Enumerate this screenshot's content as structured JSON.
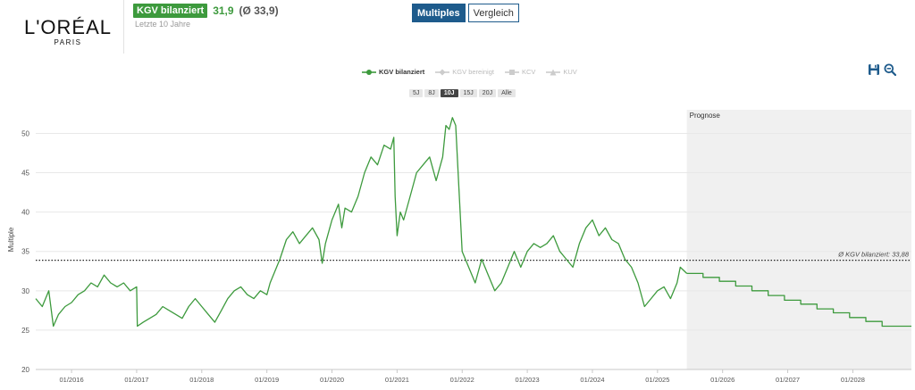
{
  "company": {
    "logo_main": "L'ORÉAL",
    "logo_sub": "PARIS"
  },
  "kpi": {
    "label": "KGV bilanziert",
    "value": "31,9",
    "average": "(Ø 33,9)",
    "subtitle": "Letzte 10 Jahre"
  },
  "tabs": [
    {
      "label": "Multiples",
      "active": true
    },
    {
      "label": "Vergleich",
      "active": false
    }
  ],
  "legend": [
    {
      "label": "KGV bilanziert",
      "active": true,
      "symbol": "circle"
    },
    {
      "label": "KGV bereinigt",
      "active": false,
      "symbol": "diamond"
    },
    {
      "label": "KCV",
      "active": false,
      "symbol": "square"
    },
    {
      "label": "KUV",
      "active": false,
      "symbol": "triangle"
    }
  ],
  "ranges": [
    {
      "label": "5J",
      "active": false
    },
    {
      "label": "8J",
      "active": false
    },
    {
      "label": "10J",
      "active": true
    },
    {
      "label": "15J",
      "active": false
    },
    {
      "label": "20J",
      "active": false
    },
    {
      "label": "Alle",
      "active": false
    }
  ],
  "tools": {
    "save_icon": "save-icon",
    "zoom_icon": "zoom-out-icon"
  },
  "colors": {
    "series": "#3d9a3d",
    "accent": "#1e5b8c",
    "forecast_band": "#f0f0f0"
  },
  "chart_data": {
    "type": "line",
    "title": "",
    "ylabel": "Multiple",
    "xlabel": "",
    "ylim": [
      20,
      53
    ],
    "yticks": [
      20,
      25,
      30,
      35,
      40,
      45,
      50
    ],
    "xlim": [
      2015.45,
      2028.9
    ],
    "xticks": [
      {
        "x": 2016,
        "label": "01/2016"
      },
      {
        "x": 2017,
        "label": "01/2017"
      },
      {
        "x": 2018,
        "label": "01/2018"
      },
      {
        "x": 2019,
        "label": "01/2019"
      },
      {
        "x": 2020,
        "label": "01/2020"
      },
      {
        "x": 2021,
        "label": "01/2021"
      },
      {
        "x": 2022,
        "label": "01/2022"
      },
      {
        "x": 2023,
        "label": "01/2023"
      },
      {
        "x": 2024,
        "label": "01/2024"
      },
      {
        "x": 2025,
        "label": "01/2025"
      },
      {
        "x": 2026,
        "label": "01/2026"
      },
      {
        "x": 2027,
        "label": "01/2027"
      },
      {
        "x": 2028,
        "label": "01/2028"
      }
    ],
    "average": {
      "value": 33.88,
      "label": "Ø KGV bilanziert: 33,88"
    },
    "forecast": {
      "start": 2025.45,
      "label": "Prognose"
    },
    "series": [
      {
        "name": "KGV bilanziert",
        "x": [
          2015.45,
          2015.55,
          2015.65,
          2015.72,
          2015.8,
          2015.9,
          2016.0,
          2016.1,
          2016.2,
          2016.3,
          2016.4,
          2016.5,
          2016.6,
          2016.7,
          2016.8,
          2016.9,
          2017.0,
          2017.01,
          2017.1,
          2017.2,
          2017.3,
          2017.4,
          2017.5,
          2017.6,
          2017.7,
          2017.8,
          2017.9,
          2018.0,
          2018.1,
          2018.2,
          2018.3,
          2018.4,
          2018.5,
          2018.6,
          2018.7,
          2018.8,
          2018.9,
          2019.0,
          2019.05,
          2019.1,
          2019.2,
          2019.3,
          2019.4,
          2019.5,
          2019.6,
          2019.7,
          2019.8,
          2019.85,
          2019.9,
          2020.0,
          2020.1,
          2020.15,
          2020.2,
          2020.3,
          2020.4,
          2020.5,
          2020.6,
          2020.7,
          2020.8,
          2020.9,
          2020.95,
          2020.97,
          2021.0,
          2021.05,
          2021.1,
          2021.2,
          2021.3,
          2021.4,
          2021.5,
          2021.6,
          2021.7,
          2021.75,
          2021.8,
          2021.85,
          2021.9,
          2021.95,
          2022.0,
          2022.1,
          2022.2,
          2022.3,
          2022.4,
          2022.5,
          2022.6,
          2022.7,
          2022.8,
          2022.9,
          2023.0,
          2023.1,
          2023.2,
          2023.3,
          2023.4,
          2023.5,
          2023.6,
          2023.7,
          2023.8,
          2023.9,
          2024.0,
          2024.1,
          2024.2,
          2024.3,
          2024.4,
          2024.5,
          2024.6,
          2024.7,
          2024.8,
          2024.9,
          2025.0,
          2025.1,
          2025.2,
          2025.3,
          2025.35,
          2025.45
        ],
        "values": [
          29.0,
          28.0,
          30.0,
          25.5,
          27.0,
          28.0,
          28.5,
          29.5,
          30.0,
          31.0,
          30.5,
          32.0,
          31.0,
          30.5,
          31.0,
          30.0,
          30.5,
          25.5,
          26.0,
          26.5,
          27.0,
          28.0,
          27.5,
          27.0,
          26.5,
          28.0,
          29.0,
          28.0,
          27.0,
          26.0,
          27.5,
          29.0,
          30.0,
          30.5,
          29.5,
          29.0,
          30.0,
          29.5,
          31.0,
          32.0,
          34.0,
          36.5,
          37.5,
          36.0,
          37.0,
          38.0,
          36.5,
          33.5,
          36.0,
          39.0,
          41.0,
          38.0,
          40.5,
          40.0,
          42.0,
          45.0,
          47.0,
          46.0,
          48.5,
          48.0,
          49.5,
          42.0,
          37.0,
          40.0,
          39.0,
          42.0,
          45.0,
          46.0,
          47.0,
          44.0,
          47.0,
          51.0,
          50.5,
          52.0,
          51.0,
          43.0,
          35.0,
          33.0,
          31.0,
          34.0,
          32.0,
          30.0,
          31.0,
          33.0,
          35.0,
          33.0,
          35.0,
          36.0,
          35.5,
          36.0,
          37.0,
          35.0,
          34.0,
          33.0,
          36.0,
          38.0,
          39.0,
          37.0,
          38.0,
          36.5,
          36.0,
          34.0,
          33.0,
          31.0,
          28.0,
          29.0,
          30.0,
          30.5,
          29.0,
          31.0,
          33.0,
          32.2
        ]
      },
      {
        "name": "Prognose",
        "x": [
          2025.45,
          2025.7,
          2025.7,
          2025.95,
          2025.95,
          2026.2,
          2026.2,
          2026.45,
          2026.45,
          2026.7,
          2026.7,
          2026.95,
          2026.95,
          2027.2,
          2027.2,
          2027.45,
          2027.45,
          2027.7,
          2027.7,
          2027.95,
          2027.95,
          2028.2,
          2028.2,
          2028.45,
          2028.45,
          2028.9
        ],
        "values": [
          32.2,
          32.2,
          31.7,
          31.7,
          31.2,
          31.2,
          30.6,
          30.6,
          30.0,
          30.0,
          29.4,
          29.4,
          28.8,
          28.8,
          28.3,
          28.3,
          27.7,
          27.7,
          27.2,
          27.2,
          26.6,
          26.6,
          26.1,
          26.1,
          25.5,
          25.5
        ]
      }
    ]
  }
}
